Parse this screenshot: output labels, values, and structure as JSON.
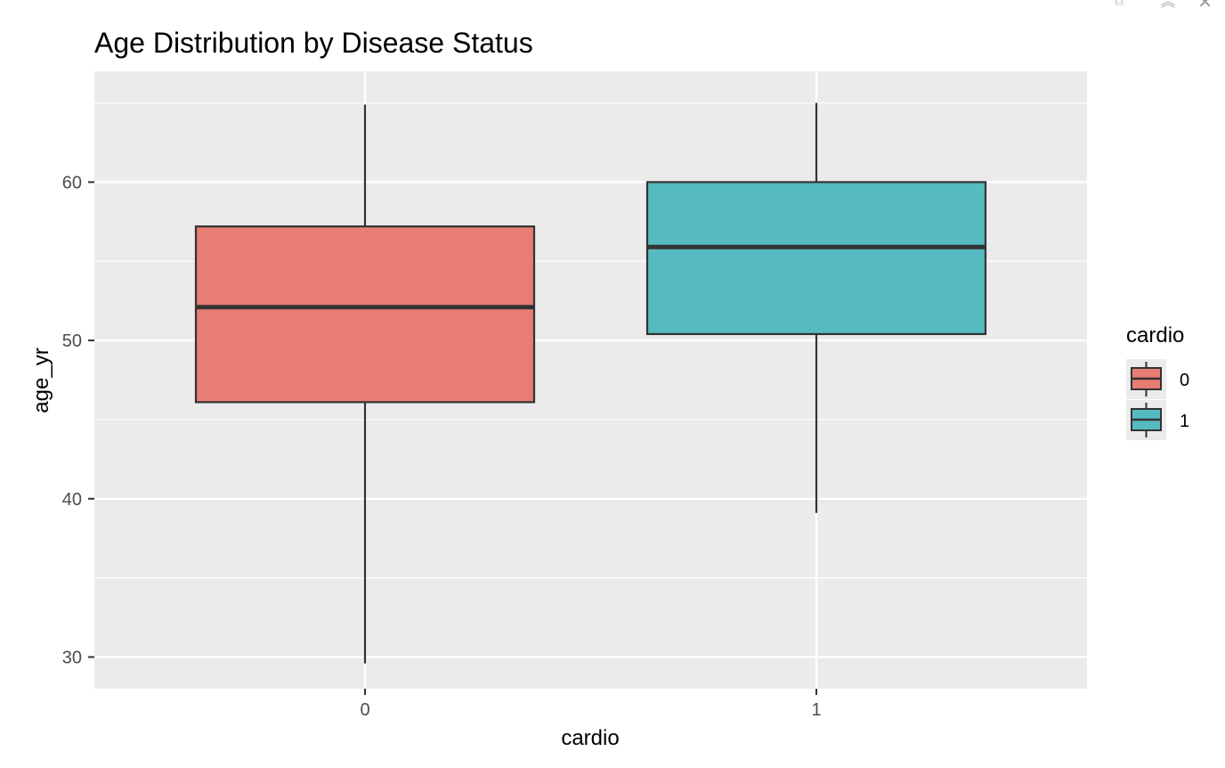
{
  "window_controls": [
    {
      "name": "popout-icon",
      "glyph": "⧉"
    },
    {
      "name": "collapse-icon",
      "glyph": "︽"
    },
    {
      "name": "close-icon",
      "glyph": "✕"
    }
  ],
  "chart_data": {
    "type": "box",
    "title": "Age Distribution by Disease Status",
    "xlabel": "cardio",
    "ylabel": "age_yr",
    "categories": [
      "0",
      "1"
    ],
    "ylim": [
      28,
      67
    ],
    "yticks": [
      30,
      40,
      50,
      60
    ],
    "grid": true,
    "legend": {
      "title": "cardio",
      "position": "right",
      "entries": [
        "0",
        "1"
      ]
    },
    "colors": {
      "0": "#E87D74",
      "1": "#55BBC1",
      "panel": "#EBEBEB",
      "grid": "#FFFFFF",
      "stroke": "#333333"
    },
    "boxes": [
      {
        "category": "0",
        "min": 29.6,
        "q1": 46.1,
        "median": 52.1,
        "q3": 57.2,
        "max": 64.9
      },
      {
        "category": "1",
        "min": 39.1,
        "q1": 50.4,
        "median": 55.9,
        "q3": 60.0,
        "max": 65.0
      }
    ]
  }
}
